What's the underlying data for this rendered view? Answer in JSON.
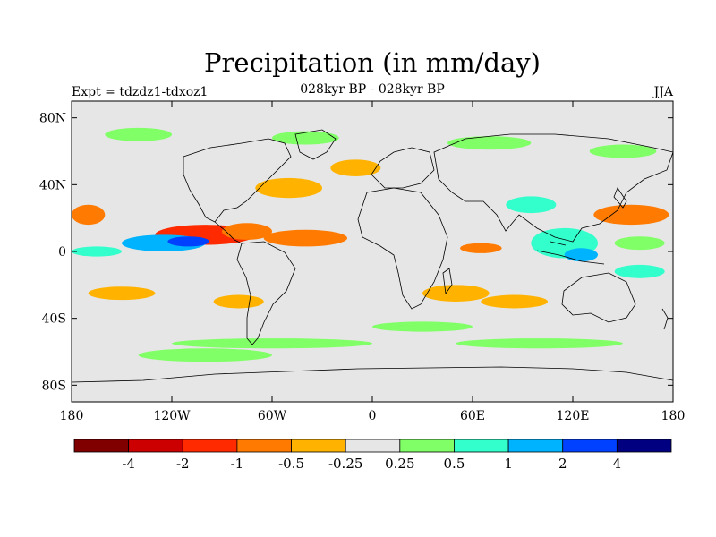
{
  "chart_data": {
    "type": "heatmap",
    "title": "Precipitation (in mm/day)",
    "subtitle": "028kyr BP - 028kyr BP",
    "left_label": "Expt = tdzdz1-tdxoz1",
    "right_label": "JJA",
    "x_ticks": [
      "180",
      "120W",
      "60W",
      "0",
      "60E",
      "120E",
      "180"
    ],
    "x_tick_values": [
      -180,
      -120,
      -60,
      0,
      60,
      120,
      180
    ],
    "y_ticks": [
      "80N",
      "40N",
      "0",
      "40S",
      "80S"
    ],
    "y_tick_values": [
      80,
      40,
      0,
      -40,
      -80
    ],
    "xlim": [
      -180,
      180
    ],
    "ylim": [
      -90,
      90
    ],
    "colorbar": {
      "colors": [
        "#800000",
        "#cc0000",
        "#ff2a00",
        "#ff7a00",
        "#ffb300",
        "#e6e6e6",
        "#80ff66",
        "#33ffcc",
        "#00b3ff",
        "#0040ff",
        "#000080"
      ],
      "labels": [
        "-4",
        "-2",
        "-1",
        "-0.5",
        "-0.25",
        "0.25",
        "0.5",
        "1",
        "2",
        "4"
      ]
    },
    "anomaly_regions": [
      {
        "lon": -100,
        "lat": 10,
        "w": 60,
        "h": 12,
        "level": -3
      },
      {
        "lon": -40,
        "lat": 8,
        "w": 50,
        "h": 10,
        "level": -2
      },
      {
        "lon": -75,
        "lat": 12,
        "w": 30,
        "h": 10,
        "level": -2
      },
      {
        "lon": -125,
        "lat": 5,
        "w": 50,
        "h": 10,
        "level": 3
      },
      {
        "lon": -110,
        "lat": 6,
        "w": 25,
        "h": 6,
        "level": 4
      },
      {
        "lon": -165,
        "lat": 0,
        "w": 30,
        "h": 6,
        "level": 2
      },
      {
        "lon": -170,
        "lat": 22,
        "w": 20,
        "h": 12,
        "level": -2
      },
      {
        "lon": -50,
        "lat": 38,
        "w": 40,
        "h": 12,
        "level": -1
      },
      {
        "lon": -10,
        "lat": 50,
        "w": 30,
        "h": 10,
        "level": -1
      },
      {
        "lon": 65,
        "lat": 2,
        "w": 25,
        "h": 6,
        "level": -2
      },
      {
        "lon": 50,
        "lat": -25,
        "w": 40,
        "h": 10,
        "level": -1
      },
      {
        "lon": 85,
        "lat": -30,
        "w": 40,
        "h": 8,
        "level": -1
      },
      {
        "lon": 115,
        "lat": 5,
        "w": 40,
        "h": 18,
        "level": 2
      },
      {
        "lon": 125,
        "lat": -2,
        "w": 20,
        "h": 8,
        "level": 3
      },
      {
        "lon": 95,
        "lat": 28,
        "w": 30,
        "h": 10,
        "level": 2
      },
      {
        "lon": 155,
        "lat": 22,
        "w": 45,
        "h": 12,
        "level": -2
      },
      {
        "lon": 160,
        "lat": 5,
        "w": 30,
        "h": 8,
        "level": 1
      },
      {
        "lon": 160,
        "lat": -12,
        "w": 30,
        "h": 8,
        "level": 2
      },
      {
        "lon": -80,
        "lat": -30,
        "w": 30,
        "h": 8,
        "level": -1
      },
      {
        "lon": -150,
        "lat": -25,
        "w": 40,
        "h": 8,
        "level": -1
      },
      {
        "lon": 30,
        "lat": -45,
        "w": 60,
        "h": 6,
        "level": 1
      },
      {
        "lon": 100,
        "lat": -55,
        "w": 100,
        "h": 6,
        "level": 1
      },
      {
        "lon": -60,
        "lat": -55,
        "w": 120,
        "h": 6,
        "level": 1
      },
      {
        "lon": -100,
        "lat": -62,
        "w": 80,
        "h": 8,
        "level": 1
      },
      {
        "lon": -140,
        "lat": 70,
        "w": 40,
        "h": 8,
        "level": 1
      },
      {
        "lon": -40,
        "lat": 68,
        "w": 40,
        "h": 8,
        "level": 1
      },
      {
        "lon": 70,
        "lat": 65,
        "w": 50,
        "h": 8,
        "level": 1
      },
      {
        "lon": 150,
        "lat": 60,
        "w": 40,
        "h": 8,
        "level": 1
      }
    ]
  }
}
